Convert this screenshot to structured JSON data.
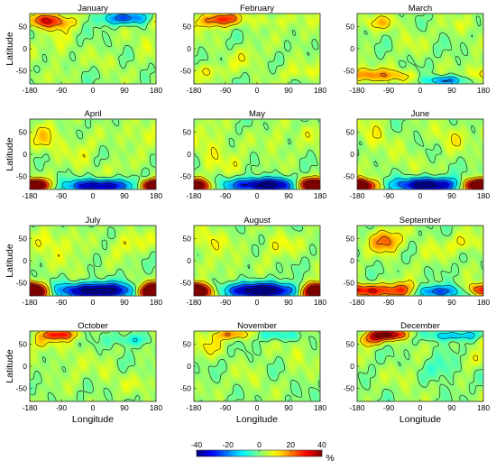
{
  "chart_data": {
    "type": "heatmap",
    "layout": "4x3 panel grid, shared colorbar at bottom",
    "xlabel": "Longitude",
    "ylabel": "Latitude",
    "xlim": [
      -180,
      180
    ],
    "ylim": [
      -80,
      80
    ],
    "xticks": [
      -180,
      -90,
      0,
      90,
      180
    ],
    "yticks": [
      -50,
      0,
      50
    ],
    "colormap": "jet",
    "contour_lines": true,
    "grid": false,
    "colorbar": {
      "placement": "bottom",
      "range": [
        -40,
        40
      ],
      "ticks": [
        -40,
        -20,
        0,
        20,
        40
      ],
      "unit": "%"
    },
    "panels": [
      {
        "title": "January",
        "features": [
          {
            "lon": -120,
            "lat": 62,
            "value": 22,
            "slon": 45,
            "slat": 12
          },
          {
            "lon": -155,
            "lat": 68,
            "value": 14,
            "slon": 30,
            "slat": 10
          },
          {
            "lon": 120,
            "lat": 70,
            "value": -20,
            "slon": 50,
            "slat": 10
          },
          {
            "lon": 60,
            "lat": 68,
            "value": -10,
            "slon": 40,
            "slat": 10
          },
          {
            "lon": -95,
            "lat": 5,
            "value": 6,
            "slon": 25,
            "slat": 30
          },
          {
            "lon": 40,
            "lat": -30,
            "value": 4,
            "slon": 30,
            "slat": 15
          },
          {
            "lon": 150,
            "lat": 15,
            "value": 5,
            "slon": 25,
            "slat": 20
          },
          {
            "lon": -160,
            "lat": -65,
            "value": 5,
            "slon": 20,
            "slat": 10
          }
        ]
      },
      {
        "title": "February",
        "features": [
          {
            "lon": -95,
            "lat": 68,
            "value": 22,
            "slon": 35,
            "slat": 10
          },
          {
            "lon": -140,
            "lat": 62,
            "value": 12,
            "slon": 35,
            "slat": 12
          },
          {
            "lon": 40,
            "lat": 65,
            "value": 7,
            "slon": 40,
            "slat": 12
          },
          {
            "lon": -30,
            "lat": -20,
            "value": 5,
            "slon": 40,
            "slat": 20
          },
          {
            "lon": -140,
            "lat": -50,
            "value": 8,
            "slon": 35,
            "slat": 12
          },
          {
            "lon": 120,
            "lat": -55,
            "value": 6,
            "slon": 40,
            "slat": 12
          },
          {
            "lon": 130,
            "lat": 30,
            "value": 4,
            "slon": 30,
            "slat": 15
          }
        ]
      },
      {
        "title": "March",
        "features": [
          {
            "lon": 70,
            "lat": -72,
            "value": -22,
            "slon": 40,
            "slat": 7
          },
          {
            "lon": -150,
            "lat": -60,
            "value": 18,
            "slon": 40,
            "slat": 10
          },
          {
            "lon": -60,
            "lat": -62,
            "value": 12,
            "slon": 35,
            "slat": 10
          },
          {
            "lon": -120,
            "lat": 60,
            "value": 10,
            "slon": 40,
            "slat": 12
          },
          {
            "lon": 130,
            "lat": 55,
            "value": 5,
            "slon": 30,
            "slat": 15
          },
          {
            "lon": -30,
            "lat": 20,
            "value": 4,
            "slon": 30,
            "slat": 20
          },
          {
            "lon": 170,
            "lat": -45,
            "value": 6,
            "slon": 25,
            "slat": 12
          }
        ]
      },
      {
        "title": "April",
        "features": [
          {
            "lon": 20,
            "lat": -72,
            "value": -42,
            "slon": 65,
            "slat": 10
          },
          {
            "lon": -165,
            "lat": -70,
            "value": 38,
            "slon": 32,
            "slat": 9
          },
          {
            "lon": 170,
            "lat": -72,
            "value": 32,
            "slon": 28,
            "slat": 9
          },
          {
            "lon": -130,
            "lat": 35,
            "value": 10,
            "slon": 30,
            "slat": 25
          },
          {
            "lon": 130,
            "lat": 45,
            "value": 7,
            "slon": 35,
            "slat": 20
          },
          {
            "lon": -30,
            "lat": 5,
            "value": 5,
            "slon": 30,
            "slat": 30
          },
          {
            "lon": 60,
            "lat": -30,
            "value": 4,
            "slon": 30,
            "slat": 15
          }
        ]
      },
      {
        "title": "May",
        "features": [
          {
            "lon": 20,
            "lat": -70,
            "value": -45,
            "slon": 75,
            "slat": 11
          },
          {
            "lon": -175,
            "lat": -72,
            "value": 42,
            "slon": 35,
            "slat": 10
          },
          {
            "lon": 145,
            "lat": -68,
            "value": 34,
            "slon": 30,
            "slat": 10
          },
          {
            "lon": -130,
            "lat": 20,
            "value": 8,
            "slon": 30,
            "slat": 30
          },
          {
            "lon": 60,
            "lat": 30,
            "value": 6,
            "slon": 30,
            "slat": 20
          },
          {
            "lon": -60,
            "lat": -25,
            "value": 6,
            "slon": 30,
            "slat": 20
          },
          {
            "lon": 150,
            "lat": 50,
            "value": 5,
            "slon": 25,
            "slat": 15
          }
        ]
      },
      {
        "title": "June",
        "features": [
          {
            "lon": 20,
            "lat": -70,
            "value": -45,
            "slon": 70,
            "slat": 11
          },
          {
            "lon": -170,
            "lat": -72,
            "value": 42,
            "slon": 35,
            "slat": 10
          },
          {
            "lon": 160,
            "lat": -70,
            "value": 36,
            "slon": 30,
            "slat": 10
          },
          {
            "lon": -130,
            "lat": 40,
            "value": 8,
            "slon": 30,
            "slat": 25
          },
          {
            "lon": 90,
            "lat": 40,
            "value": 8,
            "slon": 35,
            "slat": 20
          },
          {
            "lon": -40,
            "lat": -20,
            "value": 5,
            "slon": 30,
            "slat": 20
          }
        ]
      },
      {
        "title": "July",
        "features": [
          {
            "lon": 10,
            "lat": -68,
            "value": -48,
            "slon": 80,
            "slat": 12
          },
          {
            "lon": -175,
            "lat": -70,
            "value": 45,
            "slon": 35,
            "slat": 12
          },
          {
            "lon": 175,
            "lat": -70,
            "value": 40,
            "slon": 30,
            "slat": 12
          },
          {
            "lon": -130,
            "lat": 45,
            "value": 10,
            "slon": 30,
            "slat": 20
          },
          {
            "lon": 100,
            "lat": 40,
            "value": 8,
            "slon": 35,
            "slat": 20
          },
          {
            "lon": -60,
            "lat": 5,
            "value": 5,
            "slon": 30,
            "slat": 30
          }
        ]
      },
      {
        "title": "August",
        "features": [
          {
            "lon": 10,
            "lat": -68,
            "value": -48,
            "slon": 80,
            "slat": 12
          },
          {
            "lon": -170,
            "lat": -70,
            "value": 45,
            "slon": 35,
            "slat": 12
          },
          {
            "lon": 170,
            "lat": -70,
            "value": 40,
            "slon": 30,
            "slat": 12
          },
          {
            "lon": -140,
            "lat": 45,
            "value": 10,
            "slon": 30,
            "slat": 20
          },
          {
            "lon": 60,
            "lat": 35,
            "value": 8,
            "slon": 35,
            "slat": 20
          },
          {
            "lon": -80,
            "lat": -10,
            "value": 5,
            "slon": 30,
            "slat": 25
          }
        ]
      },
      {
        "title": "September",
        "features": [
          {
            "lon": -50,
            "lat": -68,
            "value": 32,
            "slon": 40,
            "slat": 12
          },
          {
            "lon": 40,
            "lat": -70,
            "value": -30,
            "slon": 55,
            "slat": 10
          },
          {
            "lon": -150,
            "lat": -68,
            "value": 25,
            "slon": 35,
            "slat": 10
          },
          {
            "lon": 160,
            "lat": -65,
            "value": 18,
            "slon": 25,
            "slat": 10
          },
          {
            "lon": -100,
            "lat": 45,
            "value": 22,
            "slon": 30,
            "slat": 18
          },
          {
            "lon": 130,
            "lat": 40,
            "value": 10,
            "slon": 30,
            "slat": 15
          },
          {
            "lon": 30,
            "lat": 20,
            "value": 5,
            "slon": 30,
            "slat": 20
          }
        ]
      },
      {
        "title": "October",
        "features": [
          {
            "lon": -100,
            "lat": 72,
            "value": 28,
            "slon": 35,
            "slat": 8
          },
          {
            "lon": -150,
            "lat": 55,
            "value": 12,
            "slon": 30,
            "slat": 12
          },
          {
            "lon": 110,
            "lat": 60,
            "value": -12,
            "slon": 40,
            "slat": 10
          },
          {
            "lon": 140,
            "lat": -40,
            "value": 5,
            "slon": 30,
            "slat": 15
          },
          {
            "lon": -60,
            "lat": 10,
            "value": 5,
            "slon": 30,
            "slat": 25
          },
          {
            "lon": 40,
            "lat": -20,
            "value": 4,
            "slon": 30,
            "slat": 20
          }
        ]
      },
      {
        "title": "November",
        "features": [
          {
            "lon": -70,
            "lat": 72,
            "value": 18,
            "slon": 40,
            "slat": 8
          },
          {
            "lon": 60,
            "lat": 70,
            "value": -10,
            "slon": 50,
            "slat": 8
          },
          {
            "lon": -140,
            "lat": 45,
            "value": 8,
            "slon": 30,
            "slat": 18
          },
          {
            "lon": 120,
            "lat": 30,
            "value": 6,
            "slon": 25,
            "slat": 20
          },
          {
            "lon": -20,
            "lat": -30,
            "value": 4,
            "slon": 30,
            "slat": 20
          }
        ]
      },
      {
        "title": "December",
        "features": [
          {
            "lon": -95,
            "lat": 72,
            "value": 38,
            "slon": 40,
            "slat": 8
          },
          {
            "lon": -140,
            "lat": 60,
            "value": 18,
            "slon": 30,
            "slat": 10
          },
          {
            "lon": 100,
            "lat": 70,
            "value": -18,
            "slon": 55,
            "slat": 8
          },
          {
            "lon": 60,
            "lat": -5,
            "value": -8,
            "slon": 30,
            "slat": 20
          },
          {
            "lon": -40,
            "lat": -30,
            "value": 4,
            "slon": 30,
            "slat": 20
          },
          {
            "lon": 150,
            "lat": 15,
            "value": 5,
            "slon": 25,
            "slat": 15
          }
        ]
      }
    ]
  }
}
